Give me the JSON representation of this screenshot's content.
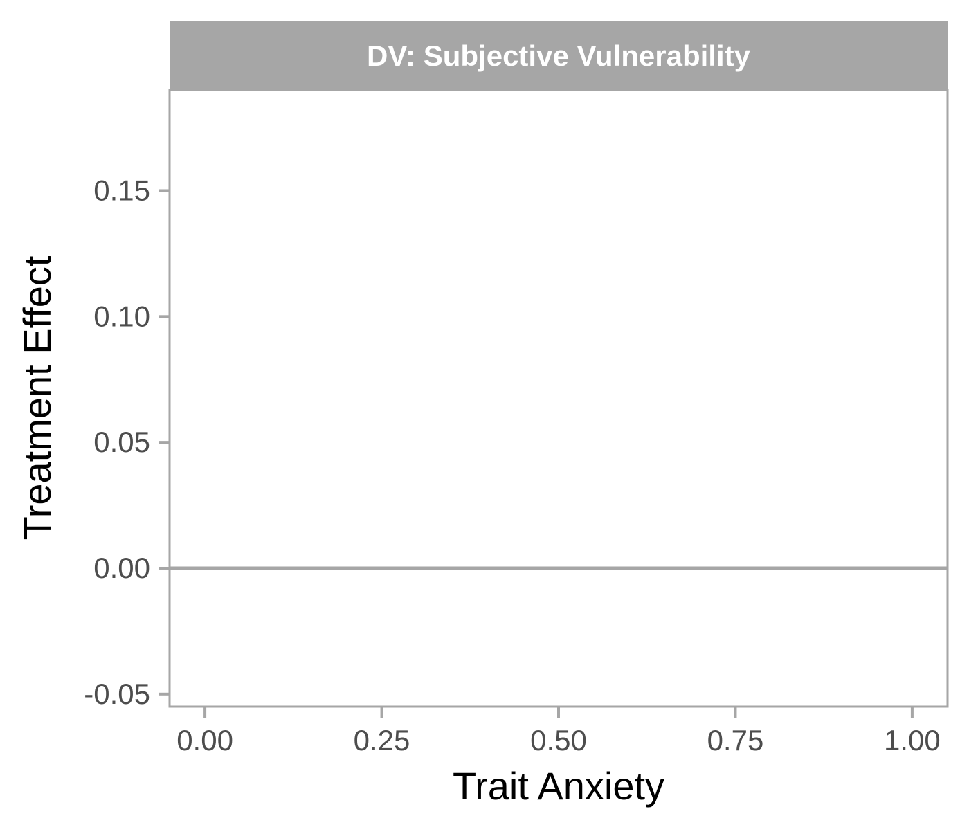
{
  "chart_data": {
    "type": "line",
    "facet_title": "DV: Subjective Vulnerability",
    "xlabel": "Trait Anxiety",
    "ylabel": "Treatment Effect",
    "xlim": [
      -0.05,
      1.05
    ],
    "ylim": [
      -0.055,
      0.19
    ],
    "x_ticks": [
      0.0,
      0.25,
      0.5,
      0.75,
      1.0
    ],
    "x_tick_labels": [
      "0.00",
      "0.25",
      "0.50",
      "0.75",
      "1.00"
    ],
    "y_ticks": [
      -0.05,
      0.0,
      0.05,
      0.1,
      0.15
    ],
    "y_tick_labels": [
      "-0.05",
      "0.00",
      "0.05",
      "0.10",
      "0.15"
    ],
    "reference_line": {
      "y": 0.0
    },
    "grid": false,
    "series": []
  },
  "colors": {
    "strip_background": "#a6a6a6",
    "strip_text": "#ffffff",
    "panel_border": "#a6a6a6",
    "axis_tick": "#a6a6a6",
    "tick_label": "#4d4d4d",
    "axis_title": "#000000",
    "reference_line": "#a6a6a6"
  }
}
